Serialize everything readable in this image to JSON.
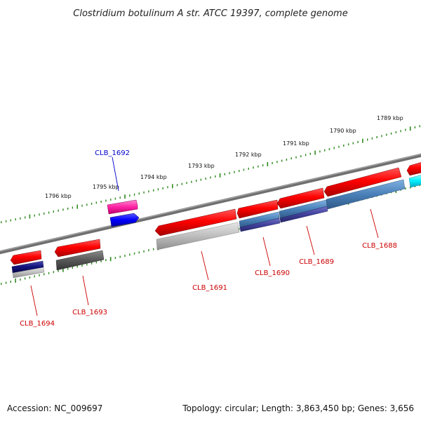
{
  "title": "Clostridium botulinum A str. ATCC 19397, complete genome",
  "footer": {
    "accession": "Accession: NC_009697",
    "summary": "Topology: circular; Length: 3,863,450 bp; Genes: 3,656"
  },
  "scale_labels": [
    "1796 kbp",
    "1795 kbp",
    "1794 kbp",
    "1793 kbp",
    "1792 kbp",
    "1791 kbp",
    "1790 kbp",
    "1789 kbp"
  ],
  "gene_labels": [
    {
      "id": "CLB_1692",
      "text": "CLB_1692",
      "color": "#0000cc"
    },
    {
      "id": "CLB_1694",
      "text": "CLB_1694",
      "color": "#cc0000"
    },
    {
      "id": "CLB_1693",
      "text": "CLB_1693",
      "color": "#cc0000"
    },
    {
      "id": "CLB_1691",
      "text": "CLB_1691",
      "color": "#cc0000"
    },
    {
      "id": "CLB_1690",
      "text": "CLB_1690",
      "color": "#cc0000"
    },
    {
      "id": "CLB_1689",
      "text": "CLB_1689",
      "color": "#cc0000"
    },
    {
      "id": "CLB_1688",
      "text": "CLB_1688",
      "color": "#cc0000"
    }
  ],
  "colors": {
    "backbone": "#7a7a7a",
    "tick": "#2e8b1e",
    "cds": "#e00000",
    "blast_blue": "#0000ff",
    "blast_navy": "#1a1a80",
    "blast_steel": "#4a7fb5",
    "blast_purple": "#3f3f99",
    "blast_gray": "#bcbcbc",
    "blast_dark": "#555555",
    "blast_pink": "#ff2aa8",
    "blast_cyan": "#00f0ff"
  }
}
